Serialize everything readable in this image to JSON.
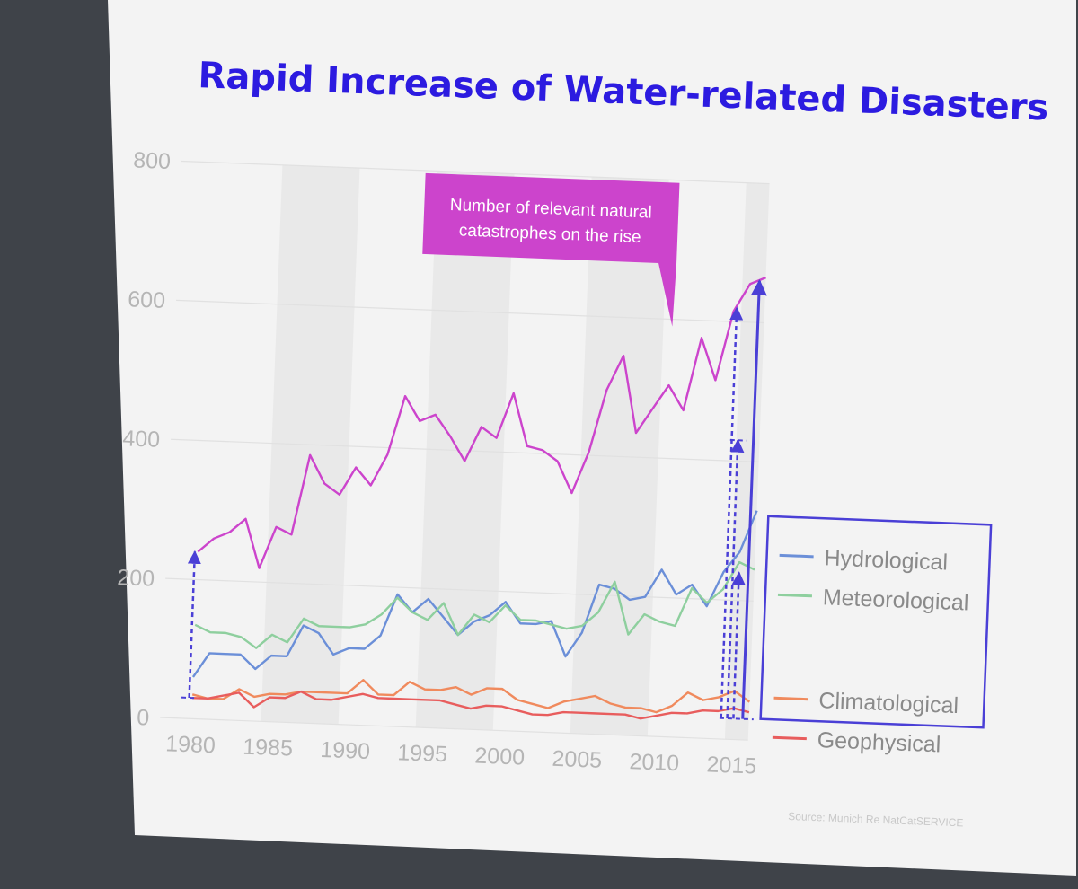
{
  "colors": {
    "title": "#2c1be0",
    "annotation": "#4a3fd6",
    "callout": "#cc44cc"
  },
  "callout": {
    "lines": [
      "Number of relevant natural",
      "catastrophes on the rise"
    ]
  },
  "source": "Source: Munich Re NatCatSERVICE",
  "chart_data": {
    "type": "line",
    "title": "Rapid Increase of Water-related Disasters",
    "xlabel": "",
    "ylabel": "",
    "xlim": [
      1980,
      2016
    ],
    "ylim": [
      0,
      800
    ],
    "y_ticks": [
      0,
      200,
      400,
      600,
      800
    ],
    "x_ticks": [
      1980,
      1985,
      1990,
      1995,
      2000,
      2005,
      2010,
      2015
    ],
    "x": [
      1980,
      1981,
      1982,
      1983,
      1984,
      1985,
      1986,
      1987,
      1988,
      1989,
      1990,
      1991,
      1992,
      1993,
      1994,
      1995,
      1996,
      1997,
      1998,
      1999,
      2000,
      2001,
      2002,
      2003,
      2004,
      2005,
      2006,
      2007,
      2008,
      2009,
      2010,
      2011,
      2012,
      2013,
      2014,
      2015,
      2016
    ],
    "series": [
      {
        "name": "Total",
        "color": "#cc44cc",
        "in_legend": false,
        "values": [
          240,
          260,
          270,
          290,
          220,
          280,
          270,
          385,
          345,
          330,
          370,
          345,
          390,
          475,
          440,
          450,
          420,
          385,
          435,
          420,
          485,
          410,
          405,
          390,
          345,
          405,
          495,
          545,
          435,
          470,
          505,
          470,
          575,
          515,
          615,
          655,
          665
        ]
      },
      {
        "name": "Hydrological",
        "color": "#6b8fd8",
        "in_legend": true,
        "values": [
          60,
          95,
          95,
          95,
          75,
          95,
          95,
          140,
          130,
          100,
          110,
          110,
          130,
          190,
          165,
          185,
          160,
          135,
          155,
          165,
          185,
          155,
          155,
          160,
          110,
          145,
          215,
          210,
          195,
          200,
          240,
          205,
          220,
          190,
          240,
          270,
          330
        ]
      },
      {
        "name": "Meteorological",
        "color": "#8ecf9e",
        "in_legend": true,
        "values": [
          135,
          125,
          125,
          120,
          105,
          125,
          115,
          150,
          140,
          140,
          140,
          145,
          160,
          185,
          165,
          155,
          180,
          135,
          165,
          155,
          180,
          160,
          160,
          155,
          150,
          155,
          175,
          220,
          145,
          175,
          165,
          160,
          215,
          195,
          215,
          255,
          245
        ]
      },
      {
        "name": "Climatological",
        "color": "#f08a5d",
        "in_legend": true,
        "values": [
          35,
          30,
          30,
          45,
          35,
          40,
          40,
          45,
          45,
          45,
          45,
          65,
          45,
          45,
          65,
          55,
          55,
          60,
          50,
          60,
          60,
          45,
          40,
          35,
          45,
          50,
          55,
          45,
          40,
          40,
          35,
          45,
          65,
          55,
          60,
          70,
          55
        ]
      },
      {
        "name": "Geophysical",
        "color": "#e85d5d",
        "in_legend": true,
        "values": [
          30,
          30,
          35,
          40,
          20,
          35,
          35,
          45,
          35,
          35,
          40,
          45,
          40,
          40,
          40,
          40,
          40,
          35,
          30,
          35,
          35,
          30,
          25,
          25,
          30,
          30,
          30,
          30,
          30,
          25,
          30,
          35,
          35,
          40,
          40,
          45,
          40
        ]
      }
    ]
  }
}
